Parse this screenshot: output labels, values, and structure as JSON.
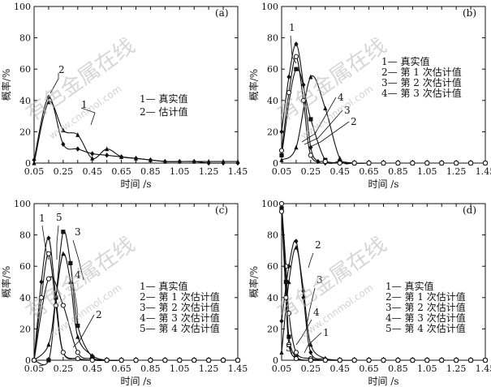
{
  "chart_data": [
    {
      "type": "line",
      "panel_label": "(a)",
      "xlabel": "时间 /s",
      "ylabel": "概率/%",
      "xlim": [
        0.05,
        1.45
      ],
      "ylim": [
        0,
        100
      ],
      "xticks": [
        "0.05",
        "0.15",
        "0.25",
        "0.35",
        "0.45",
        "0.55",
        "0.65",
        "0.75",
        "0.85",
        "0.95",
        "1.05",
        "1.15",
        "1.25",
        "1.35",
        "1.45"
      ],
      "yticks": [
        "0",
        "20",
        "40",
        "60",
        "80",
        "100"
      ],
      "legend": [
        "1— 真实值",
        "2— 估计值"
      ],
      "series": [
        {
          "label": "1",
          "marker": "triangle",
          "x": [
            0.05,
            0.15,
            0.25,
            0.35,
            0.45,
            0.55,
            0.65,
            0.75,
            0.85,
            0.95,
            1.05,
            1.15,
            1.25,
            1.35,
            1.45
          ],
          "y": [
            0,
            39,
            21,
            18,
            3,
            9,
            4,
            3,
            2,
            1,
            1,
            1,
            1,
            1,
            1
          ]
        },
        {
          "label": "2",
          "marker": "diamond",
          "x": [
            0.05,
            0.15,
            0.25,
            0.35,
            0.45,
            0.55,
            0.65,
            0.75,
            0.85,
            0.95,
            1.05,
            1.15,
            1.25,
            1.35,
            1.45
          ],
          "y": [
            2,
            42,
            12,
            9,
            6,
            5,
            4,
            3,
            2,
            1,
            1,
            1,
            0,
            0,
            0
          ]
        }
      ]
    },
    {
      "type": "line",
      "panel_label": "(b)",
      "xlabel": "时间 /s",
      "ylabel": "概率/%",
      "xlim": [
        0.05,
        1.45
      ],
      "ylim": [
        0,
        100
      ],
      "xticks": [
        "0.05",
        "0.15",
        "0.25",
        "0.35",
        "0.45",
        "0.55",
        "0.65",
        "0.75",
        "0.85",
        "0.95",
        "1.05",
        "1.15",
        "1.25",
        "1.35",
        "1.45"
      ],
      "yticks": [
        "0",
        "20",
        "40",
        "60",
        "80",
        "100"
      ],
      "legend": [
        "1— 真实值",
        "2— 第 1 次估计值",
        "3— 第 2 次估计值",
        "4— 第 3 次估计值"
      ],
      "series": [
        {
          "label": "1",
          "marker": "diamond",
          "x": [
            0.05,
            0.1,
            0.15,
            0.2,
            0.25,
            0.3,
            0.35,
            0.45,
            0.55,
            0.65,
            0.75,
            0.85,
            0.95,
            1.05,
            1.15,
            1.25,
            1.35,
            1.45
          ],
          "y": [
            20,
            55,
            76,
            50,
            10,
            1,
            0,
            0,
            0,
            0,
            0,
            0,
            0,
            0,
            0,
            0,
            0,
            0
          ]
        },
        {
          "label": "2",
          "marker": "triangle",
          "x": [
            0.05,
            0.15,
            0.25,
            0.35,
            0.45,
            0.55,
            0.65,
            0.75,
            0.85,
            0.95,
            1.05,
            1.15,
            1.25,
            1.35,
            1.45
          ],
          "y": [
            2,
            10,
            55,
            35,
            3,
            0,
            0,
            0,
            0,
            0,
            0,
            0,
            0,
            0,
            0
          ]
        },
        {
          "label": "3",
          "marker": "square",
          "x": [
            0.05,
            0.15,
            0.25,
            0.35,
            0.45,
            0.55,
            0.65,
            0.75,
            0.85,
            0.95,
            1.05,
            1.15,
            1.25,
            1.35,
            1.45
          ],
          "y": [
            5,
            60,
            28,
            2,
            1,
            0,
            0,
            0,
            0,
            0,
            0,
            0,
            0,
            0,
            0
          ]
        },
        {
          "label": "4",
          "marker": "circle",
          "x": [
            0.05,
            0.1,
            0.15,
            0.2,
            0.25,
            0.35,
            0.45,
            0.55,
            0.65,
            0.75,
            0.85,
            0.95,
            1.05,
            1.15,
            1.25,
            1.35,
            1.45
          ],
          "y": [
            8,
            45,
            68,
            40,
            5,
            1,
            0,
            0,
            0,
            0,
            0,
            0,
            0,
            0,
            0,
            0,
            0
          ]
        }
      ]
    },
    {
      "type": "line",
      "panel_label": "(c)",
      "xlabel": "时间 /s",
      "ylabel": "概率/%",
      "xlim": [
        0.05,
        1.45
      ],
      "ylim": [
        0,
        100
      ],
      "xticks": [
        "0.05",
        "0.15",
        "0.25",
        "0.35",
        "0.45",
        "0.55",
        "0.65",
        "0.75",
        "0.85",
        "0.95",
        "1.05",
        "1.15",
        "1.25",
        "1.35",
        "1.45"
      ],
      "yticks": [
        "0",
        "20",
        "40",
        "60",
        "80",
        "100"
      ],
      "legend": [
        "1— 真实值",
        "2— 第 1 次估计值",
        "3— 第 2 次估计值",
        "4— 第 3 次估计值",
        "5— 第 4 次估计值"
      ],
      "series": [
        {
          "label": "1",
          "marker": "diamond",
          "x": [
            0.05,
            0.1,
            0.15,
            0.2,
            0.25,
            0.35,
            0.45,
            0.55,
            0.65,
            0.75,
            0.85,
            0.95,
            1.05,
            1.15,
            1.25,
            1.35,
            1.45
          ],
          "y": [
            0,
            50,
            78,
            40,
            5,
            1,
            0,
            0,
            0,
            0,
            0,
            0,
            0,
            0,
            0,
            0,
            0
          ]
        },
        {
          "label": "2",
          "marker": "circle",
          "x": [
            0.05,
            0.15,
            0.25,
            0.35,
            0.45,
            0.55,
            0.65,
            0.75,
            0.85,
            0.95,
            1.05,
            1.15,
            1.25,
            1.35,
            1.45
          ],
          "y": [
            0,
            52,
            35,
            5,
            1,
            0,
            0,
            0,
            0,
            0,
            0,
            0,
            0,
            0,
            0
          ]
        },
        {
          "label": "3",
          "marker": "square",
          "x": [
            0.05,
            0.15,
            0.2,
            0.25,
            0.3,
            0.35,
            0.45,
            0.55,
            0.65,
            0.75,
            0.85,
            0.95,
            1.05,
            1.15,
            1.25,
            1.35,
            1.45
          ],
          "y": [
            0,
            0,
            40,
            82,
            62,
            22,
            2,
            0,
            0,
            0,
            0,
            0,
            0,
            0,
            0,
            0,
            0
          ]
        },
        {
          "label": "4",
          "marker": "triangle",
          "x": [
            0.05,
            0.15,
            0.2,
            0.25,
            0.3,
            0.35,
            0.45,
            0.55,
            0.65,
            0.75,
            0.85,
            0.95,
            1.05,
            1.15,
            1.25,
            1.35,
            1.45
          ],
          "y": [
            0,
            10,
            40,
            68,
            50,
            15,
            3,
            0,
            0,
            0,
            0,
            0,
            0,
            0,
            0,
            0,
            0
          ]
        },
        {
          "label": "5",
          "marker": "circle",
          "x": [
            0.05,
            0.1,
            0.15,
            0.2,
            0.25,
            0.35,
            0.45,
            0.55,
            0.65,
            0.75,
            0.85,
            0.95,
            1.05,
            1.15,
            1.25,
            1.35,
            1.45
          ],
          "y": [
            0,
            40,
            68,
            35,
            5,
            1,
            0,
            0,
            0,
            0,
            0,
            0,
            0,
            0,
            0,
            0,
            0
          ]
        }
      ]
    },
    {
      "type": "line",
      "panel_label": "(d)",
      "xlabel": "时间 /s",
      "ylabel": "概率/%",
      "xlim": [
        0.05,
        1.45
      ],
      "ylim": [
        0,
        100
      ],
      "xticks": [
        "0.05",
        "0.15",
        "0.25",
        "0.35",
        "0.45",
        "0.55",
        "0.65",
        "0.75",
        "0.85",
        "0.95",
        "1.05",
        "1.15",
        "1.25",
        "1.35",
        "1.45"
      ],
      "yticks": [
        "0",
        "20",
        "40",
        "60",
        "80",
        "100"
      ],
      "legend": [
        "1— 真实值",
        "2— 第 1 次估计值",
        "3— 第 2 次估计值",
        "4— 第 3 次估计值",
        "5— 第 4 次估计值"
      ],
      "series": [
        {
          "label": "1",
          "marker": "diamond",
          "x": [
            0.05,
            0.1,
            0.15,
            0.2,
            0.25,
            0.35,
            0.45,
            0.55,
            0.65,
            0.75,
            0.85,
            0.95,
            1.05,
            1.15,
            1.25,
            1.35,
            1.45
          ],
          "y": [
            25,
            60,
            76,
            40,
            5,
            1,
            0,
            0,
            0,
            0,
            0,
            0,
            0,
            0,
            0,
            0,
            0
          ]
        },
        {
          "label": "2",
          "marker": "triangle",
          "x": [
            0.05,
            0.1,
            0.15,
            0.2,
            0.25,
            0.35,
            0.45,
            0.55,
            0.65,
            0.75,
            0.85,
            0.95,
            1.05,
            1.15,
            1.25,
            1.35,
            1.45
          ],
          "y": [
            5,
            50,
            72,
            45,
            10,
            1,
            0,
            0,
            0,
            0,
            0,
            0,
            0,
            0,
            0,
            0,
            0
          ]
        },
        {
          "label": "3",
          "marker": "circle",
          "x": [
            0.05,
            0.08,
            0.1,
            0.15,
            0.25,
            0.35,
            0.45,
            0.55,
            0.65,
            0.75,
            0.85,
            0.95,
            1.05,
            1.15,
            1.25,
            1.35,
            1.45
          ],
          "y": [
            100,
            60,
            30,
            5,
            1,
            0,
            0,
            0,
            0,
            0,
            0,
            0,
            0,
            0,
            0,
            0,
            0
          ]
        },
        {
          "label": "4",
          "marker": "square",
          "x": [
            0.05,
            0.08,
            0.1,
            0.15,
            0.25,
            0.35,
            0.45,
            0.55,
            0.65,
            0.75,
            0.85,
            0.95,
            1.05,
            1.15,
            1.25,
            1.35,
            1.45
          ],
          "y": [
            97,
            50,
            15,
            2,
            0,
            0,
            0,
            0,
            0,
            0,
            0,
            0,
            0,
            0,
            0,
            0,
            0
          ]
        },
        {
          "label": "5",
          "marker": "circle",
          "x": [
            0.05,
            0.08,
            0.1,
            0.15,
            0.25,
            0.35,
            0.45,
            0.55,
            0.65,
            0.75,
            0.85,
            0.95,
            1.05,
            1.15,
            1.25,
            1.35,
            1.45
          ],
          "y": [
            95,
            40,
            10,
            1,
            0,
            0,
            0,
            0,
            0,
            0,
            0,
            0,
            0,
            0,
            0,
            0,
            0
          ]
        }
      ]
    }
  ],
  "watermark": {
    "text": "有色金属在线",
    "url": "www.cnnmol.com"
  }
}
